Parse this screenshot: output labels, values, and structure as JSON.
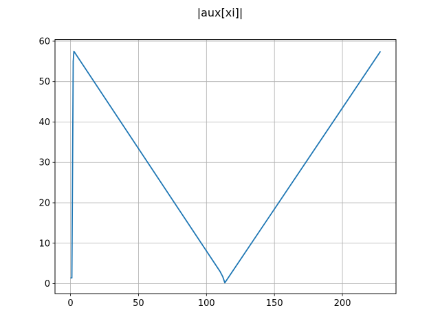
{
  "chart_data": {
    "type": "line",
    "title": "|aux[xi]|",
    "xlabel": "",
    "ylabel": "",
    "xlim": [
      -11.4,
      239.4
    ],
    "ylim": [
      -2.5,
      60.4
    ],
    "x_ticks": [
      0,
      50,
      100,
      150,
      200
    ],
    "y_ticks": [
      0,
      10,
      20,
      30,
      40,
      50,
      60
    ],
    "grid": true,
    "series": [
      {
        "color": "#1f77b4",
        "points": [
          [
            0,
            1.4
          ],
          [
            1,
            1.4
          ],
          [
            2,
            55
          ],
          [
            2.5,
            57.5
          ],
          [
            110,
            3
          ],
          [
            112,
            1.7
          ],
          [
            113.5,
            0.2
          ],
          [
            228,
            57.5
          ]
        ]
      }
    ]
  }
}
